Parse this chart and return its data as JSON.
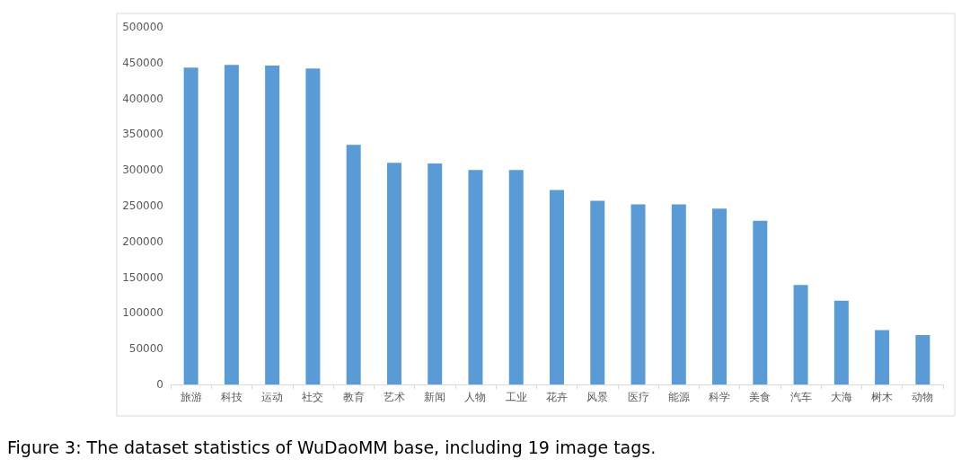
{
  "chart_data": {
    "type": "bar",
    "categories": [
      "旅游",
      "科技",
      "运动",
      "社交",
      "教育",
      "艺术",
      "新闻",
      "人物",
      "工业",
      "花卉",
      "风景",
      "医疗",
      "能源",
      "科学",
      "美食",
      "汽车",
      "大海",
      "树木",
      "动物"
    ],
    "values": [
      443000,
      447000,
      446000,
      442000,
      335000,
      310000,
      309000,
      300000,
      300000,
      272000,
      257000,
      252000,
      252000,
      246000,
      229000,
      139000,
      117000,
      76000,
      69000
    ],
    "color": "#5b9bd5",
    "ylim": [
      0,
      500000
    ],
    "yticks": [
      0,
      50000,
      100000,
      150000,
      200000,
      250000,
      300000,
      350000,
      400000,
      450000,
      500000
    ],
    "grid": false,
    "annotations": [
      "Figure 3: The dataset statistics of WuDaoMM base, including 19 image tags."
    ]
  }
}
